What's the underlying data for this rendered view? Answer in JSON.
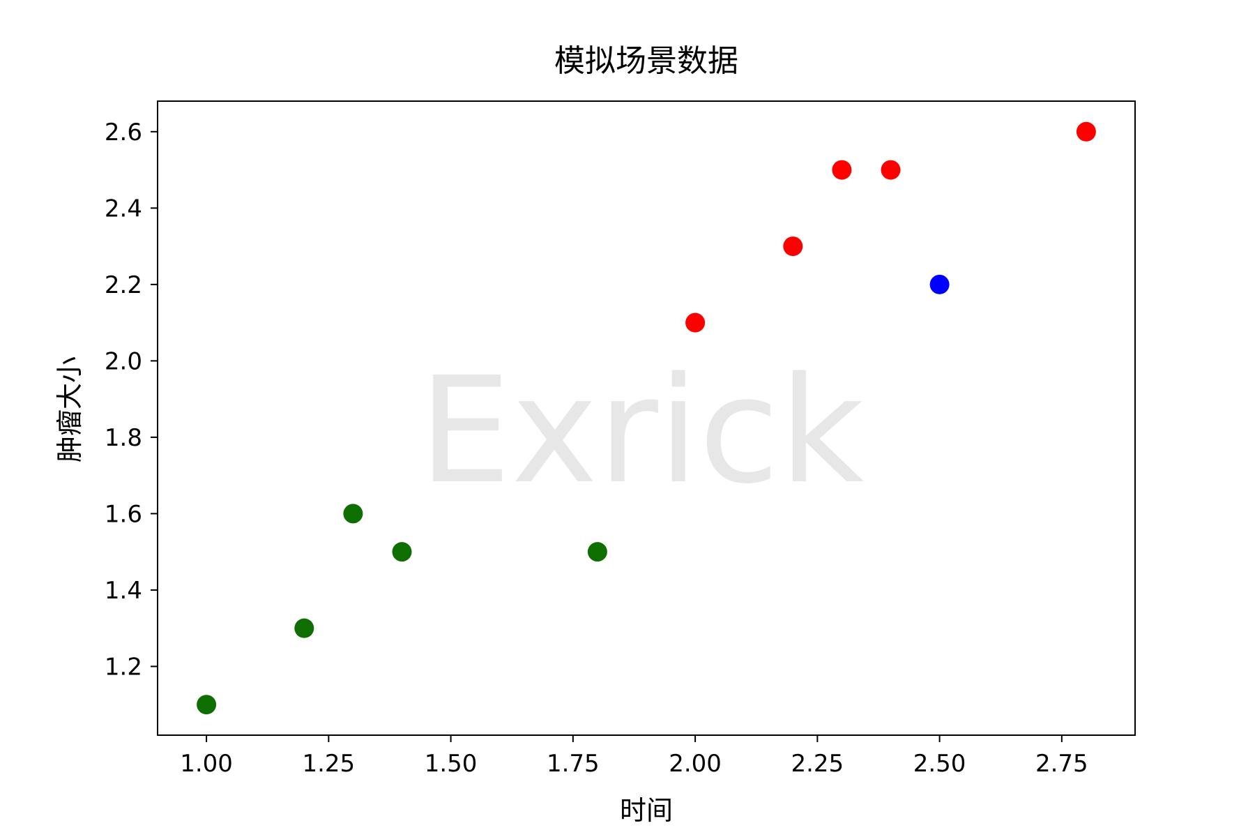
{
  "chart_data": {
    "type": "scatter",
    "title": "模拟场景数据",
    "xlabel": "时间",
    "ylabel": "肿瘤大小",
    "xlim": [
      0.9,
      2.9
    ],
    "ylim": [
      1.02,
      2.68
    ],
    "xticks": [
      1.0,
      1.25,
      1.5,
      1.75,
      2.0,
      2.25,
      2.5,
      2.75
    ],
    "xtick_labels": [
      "1.00",
      "1.25",
      "1.50",
      "1.75",
      "2.00",
      "2.25",
      "2.50",
      "2.75"
    ],
    "yticks": [
      1.2,
      1.4,
      1.6,
      1.8,
      2.0,
      2.2,
      2.4,
      2.6
    ],
    "ytick_labels": [
      "1.2",
      "1.4",
      "1.6",
      "1.8",
      "2.0",
      "2.2",
      "2.4",
      "2.6"
    ],
    "grid": false,
    "watermark": "Exrick",
    "series": [
      {
        "color": "#0f6e00",
        "points": [
          {
            "x": 1.0,
            "y": 1.1
          },
          {
            "x": 1.2,
            "y": 1.3
          },
          {
            "x": 1.3,
            "y": 1.6
          },
          {
            "x": 1.4,
            "y": 1.5
          },
          {
            "x": 1.8,
            "y": 1.5
          }
        ]
      },
      {
        "color": "#ff0000",
        "points": [
          {
            "x": 2.0,
            "y": 2.1
          },
          {
            "x": 2.2,
            "y": 2.3
          },
          {
            "x": 2.3,
            "y": 2.5
          },
          {
            "x": 2.4,
            "y": 2.5
          },
          {
            "x": 2.8,
            "y": 2.6
          }
        ]
      },
      {
        "color": "#0000ff",
        "points": [
          {
            "x": 2.5,
            "y": 2.2
          }
        ]
      }
    ]
  }
}
